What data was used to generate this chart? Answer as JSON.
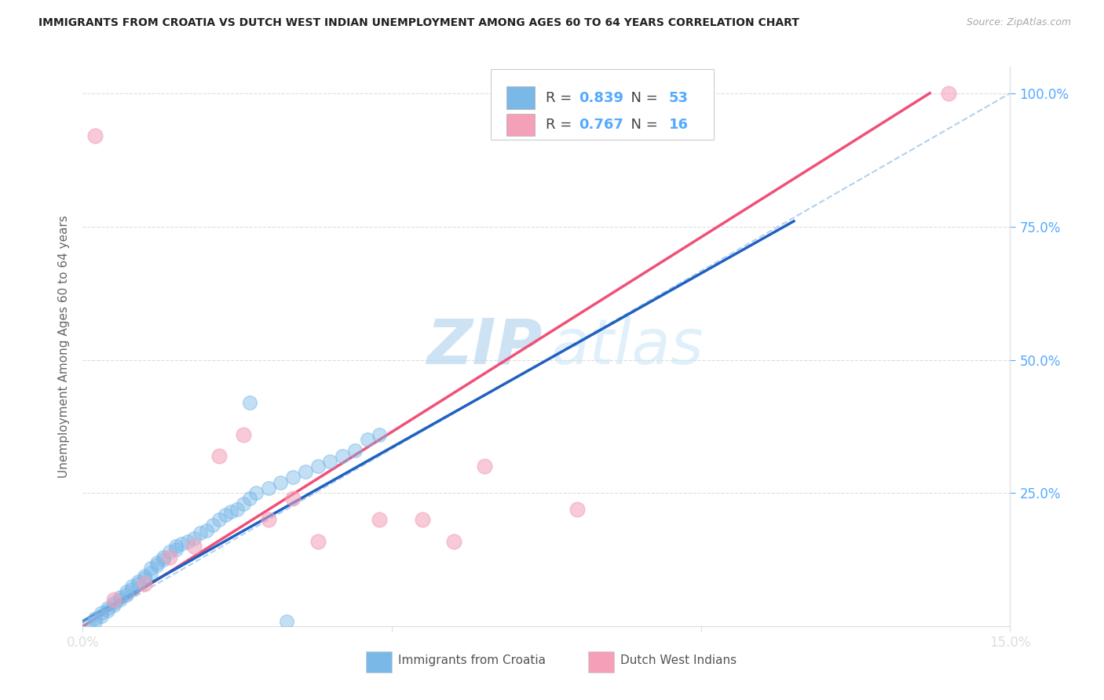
{
  "title": "IMMIGRANTS FROM CROATIA VS DUTCH WEST INDIAN UNEMPLOYMENT AMONG AGES 60 TO 64 YEARS CORRELATION CHART",
  "source": "Source: ZipAtlas.com",
  "ylabel": "Unemployment Among Ages 60 to 64 years",
  "xlim": [
    0,
    0.15
  ],
  "ylim": [
    0,
    1.05
  ],
  "croatia_R": 0.839,
  "croatia_N": 53,
  "dutch_R": 0.767,
  "dutch_N": 16,
  "croatia_color": "#7ab8e8",
  "dutch_color": "#f4a0b8",
  "croatia_line_color": "#2060c0",
  "dutch_line_color": "#f05078",
  "dashed_line_color": "#aaccee",
  "watermark_zip": "ZIP",
  "watermark_atlas": "atlas",
  "background_color": "#ffffff",
  "tick_color": "#55aaff",
  "grid_color": "#dddddd",
  "title_color": "#222222",
  "label_color": "#666666",
  "source_color": "#aaaaaa",
  "croatia_x": [
    0.001,
    0.002,
    0.002,
    0.003,
    0.003,
    0.004,
    0.004,
    0.005,
    0.005,
    0.006,
    0.006,
    0.007,
    0.007,
    0.008,
    0.008,
    0.009,
    0.009,
    0.01,
    0.01,
    0.011,
    0.011,
    0.012,
    0.012,
    0.013,
    0.013,
    0.014,
    0.015,
    0.015,
    0.016,
    0.017,
    0.018,
    0.019,
    0.02,
    0.021,
    0.022,
    0.023,
    0.024,
    0.025,
    0.026,
    0.027,
    0.028,
    0.03,
    0.032,
    0.034,
    0.036,
    0.038,
    0.04,
    0.042,
    0.044,
    0.046,
    0.048,
    0.027,
    0.033
  ],
  "croatia_y": [
    0.005,
    0.01,
    0.015,
    0.02,
    0.025,
    0.03,
    0.035,
    0.04,
    0.045,
    0.05,
    0.055,
    0.06,
    0.065,
    0.07,
    0.075,
    0.08,
    0.085,
    0.09,
    0.095,
    0.1,
    0.11,
    0.115,
    0.12,
    0.125,
    0.13,
    0.14,
    0.145,
    0.15,
    0.155,
    0.16,
    0.165,
    0.175,
    0.18,
    0.19,
    0.2,
    0.21,
    0.215,
    0.22,
    0.23,
    0.24,
    0.25,
    0.26,
    0.27,
    0.28,
    0.29,
    0.3,
    0.31,
    0.32,
    0.33,
    0.35,
    0.36,
    0.42,
    0.01
  ],
  "dutch_x": [
    0.002,
    0.005,
    0.01,
    0.014,
    0.018,
    0.022,
    0.026,
    0.03,
    0.034,
    0.038,
    0.048,
    0.055,
    0.06,
    0.065,
    0.08,
    0.14
  ],
  "dutch_y": [
    0.92,
    0.05,
    0.08,
    0.13,
    0.15,
    0.32,
    0.36,
    0.2,
    0.24,
    0.16,
    0.2,
    0.2,
    0.16,
    0.3,
    0.22,
    1.0
  ],
  "blue_line_x0": 0.0,
  "blue_line_x1": 0.115,
  "blue_line_y0": 0.01,
  "blue_line_y1": 0.76,
  "pink_line_x0": 0.0,
  "pink_line_x1": 0.137,
  "pink_line_y0": 0.0,
  "pink_line_y1": 1.0,
  "dash_line_x0": 0.0,
  "dash_line_x1": 0.15,
  "dash_line_y0": 0.0,
  "dash_line_y1": 1.0
}
